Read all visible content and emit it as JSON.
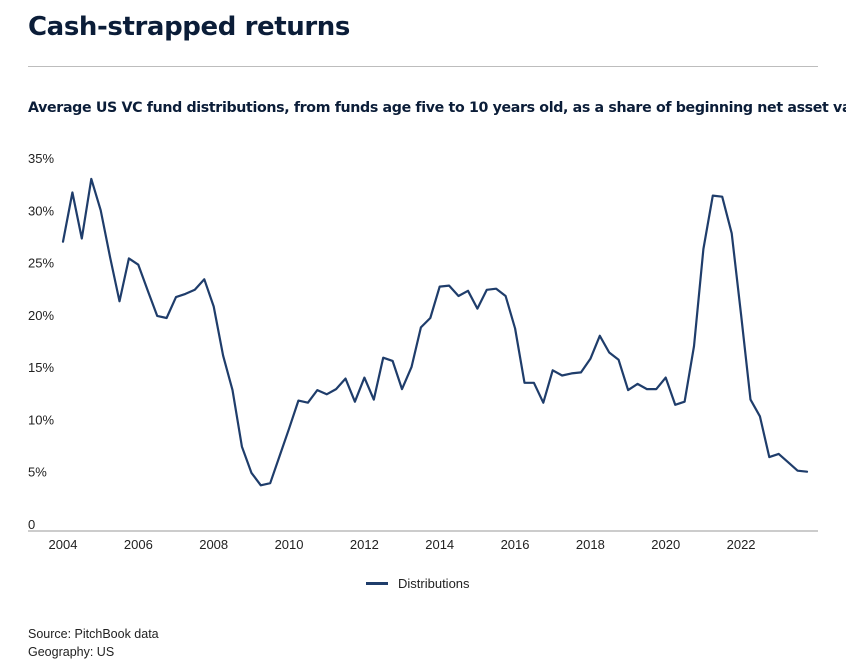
{
  "header": {
    "title": "Cash-strapped returns",
    "subtitle": "Average US VC fund distributions, from funds age five to 10 years old, as a share of beginning net asset value"
  },
  "footer": {
    "source": "Source: PitchBook data",
    "geography": "Geography: US"
  },
  "colors": {
    "series": "#1f3d6b",
    "axis": "#999999"
  },
  "chart_data": {
    "type": "line",
    "title": "Average US VC fund distributions, from funds age five to 10 years old, as a share of beginning net asset value",
    "xlabel": "",
    "ylabel": "",
    "xlim": [
      2004,
      2023.75
    ],
    "ylim": [
      0,
      35
    ],
    "x_ticks": [
      2004,
      2006,
      2008,
      2010,
      2012,
      2014,
      2016,
      2018,
      2020,
      2022
    ],
    "y_ticks": [
      0,
      5,
      10,
      15,
      20,
      25,
      30,
      35
    ],
    "y_tick_labels": [
      "0",
      "5%",
      "10%",
      "15%",
      "20%",
      "25%",
      "30%",
      "35%"
    ],
    "grid": false,
    "legend_position": "bottom-center",
    "series": [
      {
        "name": "Distributions",
        "x": [
          2004.0,
          2004.25,
          2004.5,
          2004.75,
          2005.0,
          2005.25,
          2005.5,
          2005.75,
          2006.0,
          2006.25,
          2006.5,
          2006.75,
          2007.0,
          2007.25,
          2007.5,
          2007.75,
          2008.0,
          2008.25,
          2008.5,
          2008.75,
          2009.0,
          2009.25,
          2009.5,
          2009.75,
          2010.0,
          2010.25,
          2010.5,
          2010.75,
          2011.0,
          2011.25,
          2011.5,
          2011.75,
          2012.0,
          2012.25,
          2012.5,
          2012.75,
          2013.0,
          2013.25,
          2013.5,
          2013.75,
          2014.0,
          2014.25,
          2014.5,
          2014.75,
          2015.0,
          2015.25,
          2015.5,
          2015.75,
          2016.0,
          2016.25,
          2016.5,
          2016.75,
          2017.0,
          2017.25,
          2017.5,
          2017.75,
          2018.0,
          2018.25,
          2018.5,
          2018.75,
          2019.0,
          2019.25,
          2019.5,
          2019.75,
          2020.0,
          2020.25,
          2020.5,
          2020.75,
          2021.0,
          2021.25,
          2021.5,
          2021.75,
          2022.0,
          2022.25,
          2022.5,
          2022.75,
          2023.0,
          2023.25,
          2023.5,
          2023.75
        ],
        "values": [
          27.0,
          31.7,
          27.3,
          33.0,
          30.0,
          25.5,
          21.3,
          25.4,
          24.8,
          22.3,
          19.9,
          19.7,
          21.7,
          22.0,
          22.4,
          23.4,
          20.8,
          16.1,
          12.8,
          7.4,
          4.9,
          3.7,
          3.9,
          6.5,
          9.1,
          11.8,
          11.6,
          12.8,
          12.4,
          12.9,
          13.9,
          11.7,
          14.0,
          11.9,
          15.9,
          15.6,
          12.9,
          15.0,
          18.8,
          19.7,
          22.7,
          22.8,
          21.8,
          22.3,
          20.6,
          22.4,
          22.5,
          21.8,
          18.7,
          13.5,
          13.5,
          11.6,
          14.7,
          14.2,
          14.4,
          14.5,
          15.8,
          18.0,
          16.4,
          15.7,
          12.8,
          13.4,
          12.9,
          12.9,
          14.0,
          11.4,
          11.7,
          17.0,
          26.3,
          31.4,
          31.3,
          27.8,
          20.0,
          11.9,
          10.3,
          6.4,
          6.7,
          5.9,
          5.1,
          5.0
        ]
      }
    ]
  }
}
